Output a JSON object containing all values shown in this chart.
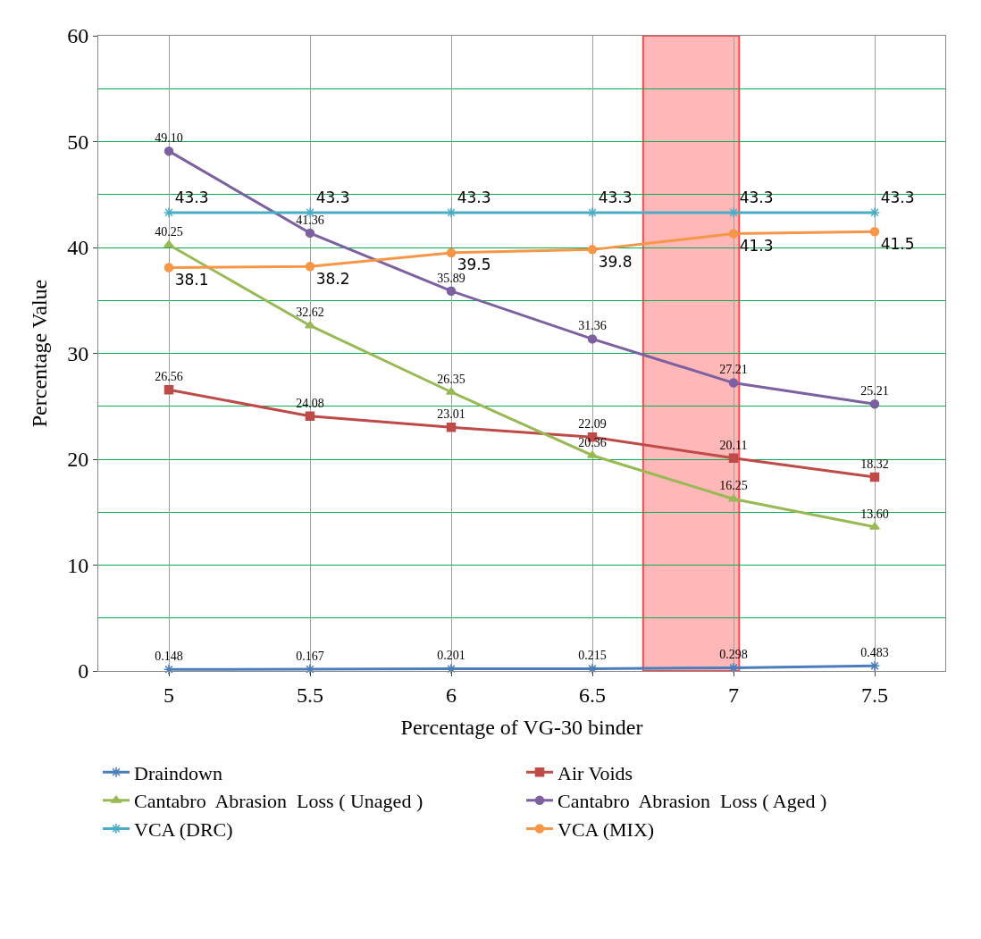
{
  "chart_data": {
    "type": "line",
    "xlabel": "Percentage of VG-30 binder",
    "ylabel": "Percentage Value",
    "x": [
      5,
      5.5,
      6,
      6.5,
      7,
      7.5
    ],
    "xlim": [
      4.75,
      7.75
    ],
    "xticks": [
      5,
      5.5,
      6,
      6.5,
      7,
      7.5
    ],
    "ylim": [
      0,
      60
    ],
    "yticks": [
      0,
      10,
      20,
      30,
      40,
      50,
      60
    ],
    "grid": true,
    "legend": "bottom",
    "line_style": "solid",
    "bands": [
      {
        "axis": "x",
        "from": 6.68,
        "to": 7.02,
        "color": "#ff9999"
      }
    ],
    "series": [
      {
        "name": "Draindown",
        "color": "#4a7ebb",
        "marker": "cross",
        "values": [
          0.148,
          0.167,
          0.201,
          0.215,
          0.298,
          0.483
        ],
        "value_labels": [
          "0.148",
          "0.167",
          "0.201",
          "0.215",
          "0.298",
          "0.483"
        ]
      },
      {
        "name": "Air Voids",
        "color": "#be4b48",
        "marker": "square",
        "values": [
          26.56,
          24.08,
          23.01,
          22.09,
          20.11,
          18.32
        ],
        "value_labels": [
          "26.56",
          "24.08",
          "23.01",
          "22.09",
          "20.11",
          "18.32"
        ]
      },
      {
        "name": "Cantabro  Abrasion  Loss ( Unaged )",
        "color": "#98b954",
        "marker": "triangle",
        "values": [
          40.25,
          32.62,
          26.35,
          20.36,
          16.25,
          13.6
        ],
        "value_labels": [
          "40.25",
          "32.62",
          "26.35",
          "20.36",
          "16.25",
          "13.60"
        ]
      },
      {
        "name": "Cantabro  Abrasion  Loss ( Aged )",
        "color": "#7d60a0",
        "marker": "circle",
        "values": [
          49.1,
          41.36,
          35.89,
          31.36,
          27.21,
          25.21
        ],
        "value_labels": [
          "49.10",
          "41.36",
          "35.89",
          "31.36",
          "27.21",
          "25.21"
        ]
      },
      {
        "name": "VCA (DRC)",
        "color": "#4bacc6",
        "marker": "cross",
        "values": [
          43.3,
          43.3,
          43.3,
          43.3,
          43.3,
          43.3
        ],
        "value_labels": [
          "43.3",
          "43.3",
          "43.3",
          "43.3",
          "43.3",
          "43.3"
        ]
      },
      {
        "name": "VCA (MIX)",
        "color": "#f79646",
        "marker": "circle",
        "values": [
          38.1,
          38.2,
          39.5,
          39.8,
          41.3,
          41.5
        ],
        "value_labels": [
          "38.1",
          "38.2",
          "39.5",
          "39.8",
          "41.3",
          "41.5"
        ]
      }
    ]
  }
}
